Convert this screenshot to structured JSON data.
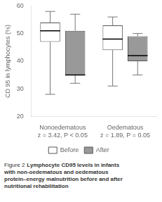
{
  "chart_data": {
    "type": "box",
    "ylabel": "CD 95 in lymphocytes (%)",
    "categories": [
      "Nonoedematous",
      "Oedematous"
    ],
    "annotations": [
      "z = 3.42, P < 0.05",
      "z = 1.89, P = 0.05"
    ],
    "series": [
      {
        "name": "Before",
        "color": "#ffffff",
        "values": [
          {
            "whislo": 28,
            "q1": 47,
            "med": 51,
            "q3": 54,
            "whishi": 58
          },
          {
            "whislo": 31,
            "q1": 44,
            "med": 48,
            "q3": 53,
            "whishi": 56
          }
        ]
      },
      {
        "name": "After",
        "color": "#999999",
        "values": [
          {
            "whislo": 32,
            "q1": 35,
            "med": 35,
            "q3": 51,
            "whishi": 57
          },
          {
            "whislo": 35,
            "q1": 40,
            "med": 42,
            "q3": 49,
            "whishi": 50
          }
        ]
      }
    ],
    "ylim": [
      20,
      60
    ],
    "yticks": [
      20,
      30,
      40,
      50,
      60
    ],
    "grid": false,
    "legend": "bottom",
    "caption": {
      "label": "Figure 2",
      "text": "Lymphocyte CD95 levels in infants\nwith non-oedematous and oedematous\nprotein–energy malnutrition before and after\nnutritional rehabilitation"
    }
  }
}
